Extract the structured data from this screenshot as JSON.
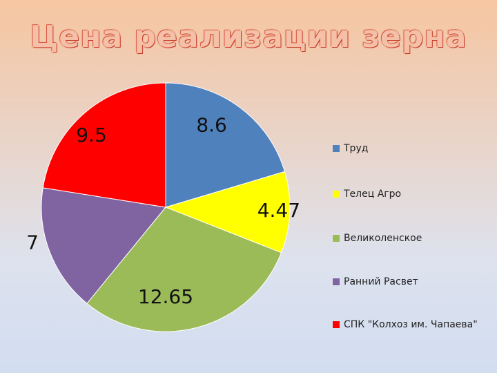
{
  "title": "Цена реализации зерна",
  "chart_data": {
    "type": "pie",
    "title": "Цена реализации зерна",
    "legend_position": "right",
    "slices": [
      {
        "name": "Труд",
        "value": 8.6,
        "label": "8.6",
        "color": "#4f81bd"
      },
      {
        "name": "Телец Агро",
        "value": 4.47,
        "label": "4.47",
        "color": "#ffff00"
      },
      {
        "name": "Великоленское",
        "value": 12.65,
        "label": "12.65",
        "color": "#9bbb59"
      },
      {
        "name": "Ранний Расвет",
        "value": 7,
        "label": "7",
        "color": "#8064a2"
      },
      {
        "name": "СПК \"Колхоз им. Чапаева\"",
        "value": 9.5,
        "label": "9.5",
        "color": "#ff0000"
      }
    ]
  }
}
